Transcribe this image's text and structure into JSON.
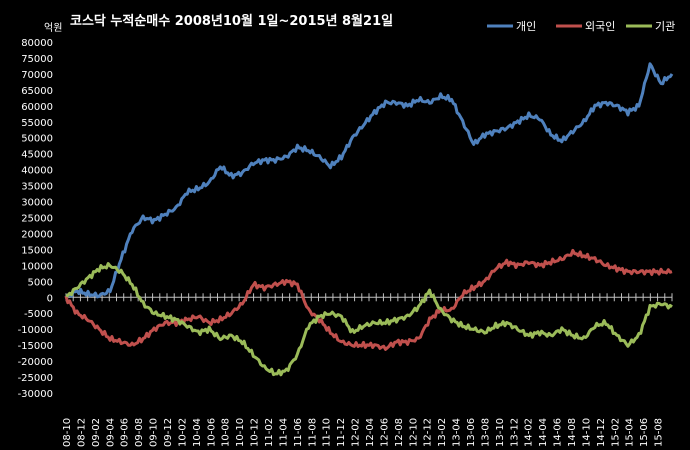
{
  "chart_data": {
    "type": "line",
    "title": "코스닥 누적순매수 2008년10월 1일~2015년 8월21일",
    "unit_label": "억원",
    "ylim": [
      -30000,
      80000
    ],
    "ytick_step": 5000,
    "grid": false,
    "legend_position": "top-right",
    "x_tick_labels": [
      "08-10",
      "08-12",
      "09-02",
      "09-04",
      "09-06",
      "09-08",
      "09-10",
      "09-12",
      "10-02",
      "10-04",
      "10-06",
      "10-08",
      "10-10",
      "10-12",
      "11-02",
      "11-04",
      "11-06",
      "11-08",
      "11-10",
      "11-12",
      "12-02",
      "12-04",
      "12-06",
      "12-08",
      "12-10",
      "12-12",
      "13-02",
      "13-04",
      "13-06",
      "13-08",
      "13-10",
      "13-12",
      "14-02",
      "14-04",
      "14-06",
      "14-08",
      "14-10",
      "14-12",
      "15-02",
      "15-04",
      "15-06",
      "15-08"
    ],
    "series": [
      {
        "name": "개인",
        "color": "#4f81bd",
        "values": [
          0,
          2000,
          1000,
          500,
          2000,
          12000,
          21000,
          25000,
          24000,
          26000,
          28000,
          33000,
          34000,
          36000,
          41000,
          38000,
          39000,
          42000,
          43000,
          43000,
          44000,
          47000,
          46000,
          44000,
          41000,
          44000,
          50000,
          54000,
          58000,
          61000,
          61000,
          60000,
          62000,
          61000,
          63000,
          62000,
          55000,
          48000,
          51000,
          52000,
          53000,
          55000,
          57000,
          56000,
          51000,
          49000,
          52000,
          55000,
          60000,
          61000,
          60000,
          58000,
          60000,
          73000,
          67000,
          70000
        ]
      },
      {
        "name": "외국인",
        "color": "#c0504d",
        "values": [
          0,
          -5000,
          -7000,
          -10000,
          -13000,
          -14000,
          -15000,
          -13000,
          -10000,
          -8000,
          -8000,
          -7000,
          -6000,
          -8000,
          -7000,
          -5000,
          -2000,
          4000,
          3000,
          4000,
          5000,
          4000,
          -4000,
          -7000,
          -11000,
          -14000,
          -15000,
          -15000,
          -15000,
          -16000,
          -14000,
          -14000,
          -13000,
          -7000,
          -4000,
          -4000,
          1000,
          3000,
          5000,
          9000,
          11000,
          10000,
          11000,
          10000,
          11000,
          12000,
          14000,
          13000,
          12000,
          10000,
          9000,
          8000,
          8000,
          8000,
          8000,
          8000
        ]
      },
      {
        "name": "기관",
        "color": "#9bbb59",
        "values": [
          0,
          3000,
          6000,
          9000,
          10000,
          8000,
          4000,
          -2000,
          -5000,
          -6000,
          -7000,
          -9000,
          -11000,
          -10000,
          -13000,
          -12000,
          -14000,
          -18000,
          -22000,
          -24000,
          -23000,
          -18000,
          -9000,
          -6000,
          -5000,
          -6000,
          -11000,
          -9000,
          -8000,
          -8000,
          -7000,
          -6000,
          -3000,
          2000,
          -4000,
          -7000,
          -9000,
          -10000,
          -11000,
          -9000,
          -8000,
          -10000,
          -12000,
          -11000,
          -12000,
          -10000,
          -12000,
          -13000,
          -9000,
          -8000,
          -12000,
          -15000,
          -12000,
          -3000,
          -2000,
          -3000
        ]
      }
    ]
  }
}
